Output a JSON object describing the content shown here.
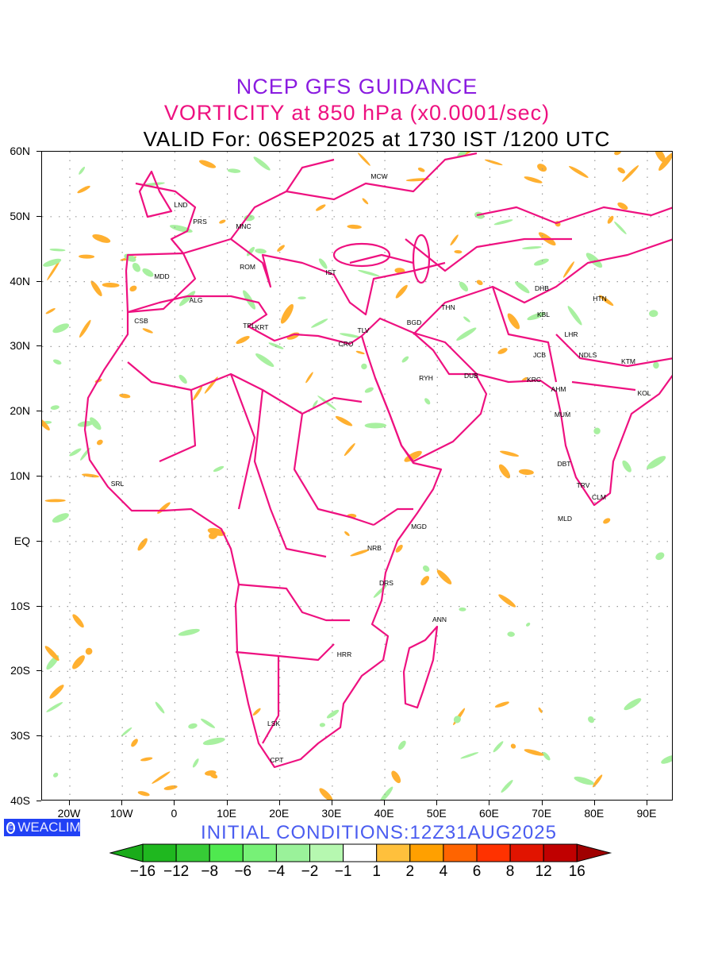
{
  "header": {
    "line1": "NCEP GFS GUIDANCE",
    "line2": "VORTICITY at 850 hPa (x0.0001/sec)",
    "line3": "VALID For: 06SEP2025 at 1730 IST /1200 UTC"
  },
  "axes": {
    "lat_labels": [
      "60N",
      "50N",
      "40N",
      "30N",
      "20N",
      "10N",
      "EQ",
      "10S",
      "20S",
      "30S",
      "40S"
    ],
    "lon_labels": [
      "20W",
      "10W",
      "0",
      "10E",
      "20E",
      "30E",
      "40E",
      "50E",
      "60E",
      "70E",
      "80E",
      "90E"
    ]
  },
  "cities": [
    "MCW",
    "LND",
    "PRS",
    "MNC",
    "ROM",
    "MDD",
    "IST",
    "ALG",
    "CSB",
    "TPL",
    "KRT",
    "TLV",
    "CRO",
    "BGD",
    "THN",
    "DHB",
    "HTN",
    "KBL",
    "LHR",
    "JCB",
    "NDLS",
    "KTM",
    "RYH",
    "DUB",
    "KRC",
    "AHM",
    "KOL",
    "MUM",
    "DBT",
    "TRV",
    "CLM",
    "MLD",
    "SRL",
    "MGD",
    "NRB",
    "DRS",
    "ANN",
    "HRR",
    "LSK",
    "CPT"
  ],
  "logo": {
    "text": "WEACLIM",
    "symbol": "©"
  },
  "initial_conditions": "INITIAL  CONDITIONS:12Z31AUG2025",
  "colorbar": {
    "labels": [
      "−16",
      "−12",
      "−8",
      "−6",
      "−4",
      "−2",
      "−1",
      "1",
      "2",
      "4",
      "6",
      "8",
      "12",
      "16"
    ],
    "colors": [
      "#1aab1a",
      "#1fb81f",
      "#36cc36",
      "#4fe94f",
      "#77f177",
      "#9af29a",
      "#b6f8b0",
      "#ffffff",
      "#ffc03c",
      "#ffa000",
      "#ff6400",
      "#ff3200",
      "#e11400",
      "#c00000",
      "#a00000"
    ]
  },
  "colors": {
    "border": "#ee1180",
    "positive": "#ffb030",
    "negative": "#a8f0a0"
  }
}
